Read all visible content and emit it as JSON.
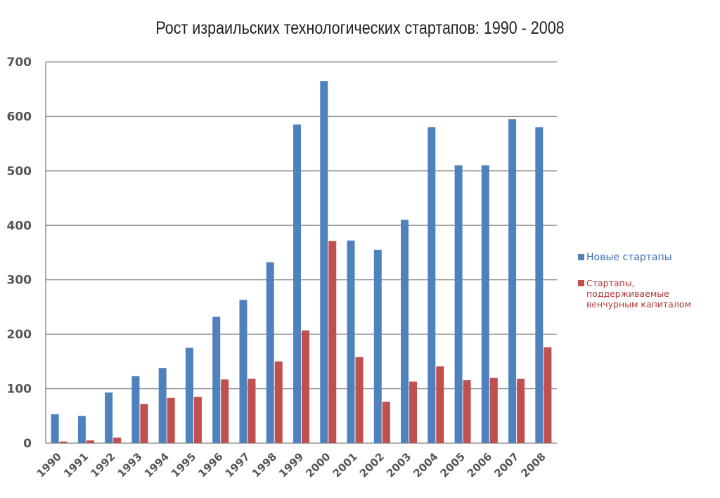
{
  "title": "Рост израильских технологических стартапов: 1990 - 2008",
  "colors": {
    "new": "#4f81bd",
    "vc": "#c0504d",
    "grid": "#8c8c8c"
  },
  "legend": {
    "new_label": "Новые стартапы",
    "vc_label": "Стартапы, поддерживаемые венчурным капиталом"
  },
  "chart_data": {
    "type": "bar",
    "title": "Рост израильских технологических стартапов: 1990 - 2008",
    "categories": [
      "1990",
      "1991",
      "1992",
      "1993",
      "1994",
      "1995",
      "1996",
      "1997",
      "1998",
      "1999",
      "2000",
      "2001",
      "2002",
      "2003",
      "2004",
      "2005",
      "2006",
      "2007",
      "2008"
    ],
    "series": [
      {
        "name": "Новые стартапы",
        "values": [
          53,
          50,
          93,
          123,
          138,
          175,
          232,
          263,
          332,
          585,
          665,
          372,
          355,
          410,
          580,
          510,
          510,
          595,
          580
        ]
      },
      {
        "name": "Стартапы, поддерживаемые венчурным капиталом",
        "values": [
          3,
          5,
          10,
          72,
          83,
          85,
          117,
          118,
          150,
          207,
          371,
          158,
          76,
          113,
          141,
          116,
          120,
          118,
          176
        ]
      }
    ],
    "ylim": [
      0,
      700
    ],
    "yticks": [
      0,
      100,
      200,
      300,
      400,
      500,
      600,
      700
    ],
    "grid": true,
    "legend_position": "right"
  }
}
